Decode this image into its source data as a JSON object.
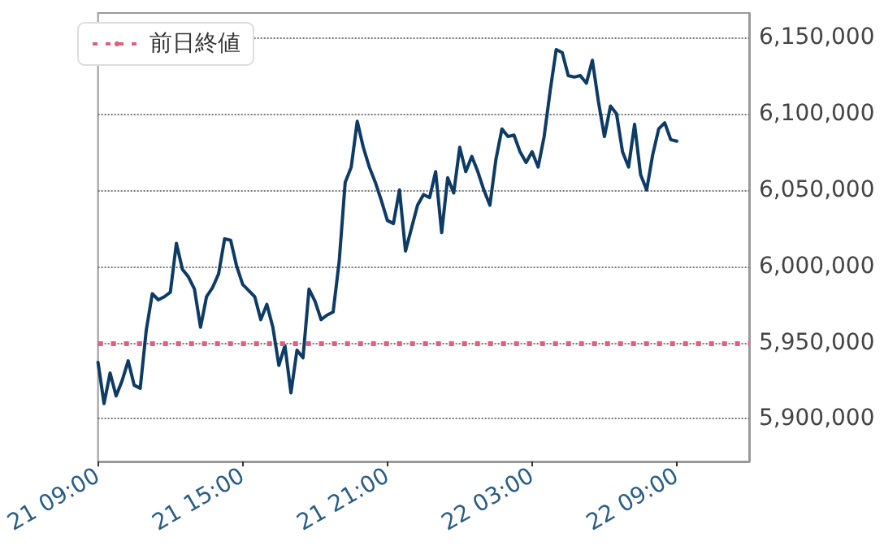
{
  "chart_data": {
    "type": "line",
    "categories": [
      "21 09:00",
      null,
      null,
      null,
      null,
      null,
      null,
      null,
      null,
      null,
      null,
      null,
      null,
      null,
      null,
      null,
      null,
      null,
      null,
      null,
      null,
      null,
      null,
      null,
      "21 15:00",
      null,
      null,
      null,
      null,
      null,
      null,
      null,
      null,
      null,
      null,
      null,
      null,
      null,
      null,
      null,
      null,
      null,
      null,
      null,
      null,
      null,
      null,
      null,
      "21 21:00",
      null,
      null,
      null,
      null,
      null,
      null,
      null,
      null,
      null,
      null,
      null,
      null,
      null,
      null,
      null,
      null,
      null,
      null,
      null,
      null,
      null,
      null,
      null,
      "22 03:00",
      null,
      null,
      null,
      null,
      null,
      null,
      null,
      null,
      null,
      null,
      null,
      null,
      null,
      null,
      null,
      null,
      null,
      null,
      null,
      null,
      null,
      null,
      null,
      "22 09:00",
      null,
      null,
      null,
      null,
      null,
      null,
      null,
      null,
      null,
      null,
      null,
      null
    ],
    "series": [
      {
        "color": "#0d3b66",
        "values": [
          5937000,
          5910000,
          5930000,
          5915000,
          5925000,
          5938000,
          5922000,
          5920000,
          5958000,
          5982000,
          5978000,
          5980000,
          5983000,
          6015000,
          5998000,
          5993000,
          5985000,
          5960000,
          5980000,
          5986000,
          5995000,
          6018000,
          6017000,
          6000000,
          5988000,
          5984000,
          5980000,
          5965000,
          5975000,
          5960000,
          5935000,
          5948000,
          5917000,
          5945000,
          5940000,
          5985000,
          5977000,
          5965000,
          5968000,
          5970000,
          6003000,
          6055000,
          6065000,
          6095000,
          6078000,
          6065000,
          6055000,
          6043000,
          6030000,
          6028000,
          6050000,
          6010000,
          6025000,
          6040000,
          6047000,
          6045000,
          6062000,
          6022000,
          6058000,
          6048000,
          6078000,
          6062000,
          6072000,
          6062000,
          6050000,
          6040000,
          6070000,
          6090000,
          6085000,
          6086000,
          6075000,
          6068000,
          6075000,
          6065000,
          6085000,
          6115000,
          6142000,
          6140000,
          6125000,
          6124000,
          6125000,
          6120000,
          6135000,
          6108000,
          6085000,
          6105000,
          6100000,
          6075000,
          6065000,
          6093000,
          6060000,
          6050000,
          6073000,
          6090000,
          6094000,
          6083000,
          6082000,
          null,
          null,
          null,
          null,
          null,
          null,
          null,
          null,
          null,
          null,
          null,
          null
        ]
      }
    ],
    "ylim": [
      5872000,
      6166000
    ],
    "yticks": [
      {
        "value": 5900000,
        "label": "5,900,000"
      },
      {
        "value": 5950000,
        "label": "5,950,000"
      },
      {
        "value": 6000000,
        "label": "6,000,000"
      },
      {
        "value": 6050000,
        "label": "6,050,000"
      },
      {
        "value": 6100000,
        "label": "6,100,000"
      },
      {
        "value": 6150000,
        "label": "6,150,000"
      }
    ],
    "ref_lines": [
      {
        "axis": "y",
        "value": 5950000,
        "label": "前日終値",
        "color": "#e0607e",
        "line_style": "dotted"
      }
    ],
    "grid": "y",
    "legend": "top left",
    "marker": "none",
    "line_style": "solid"
  }
}
